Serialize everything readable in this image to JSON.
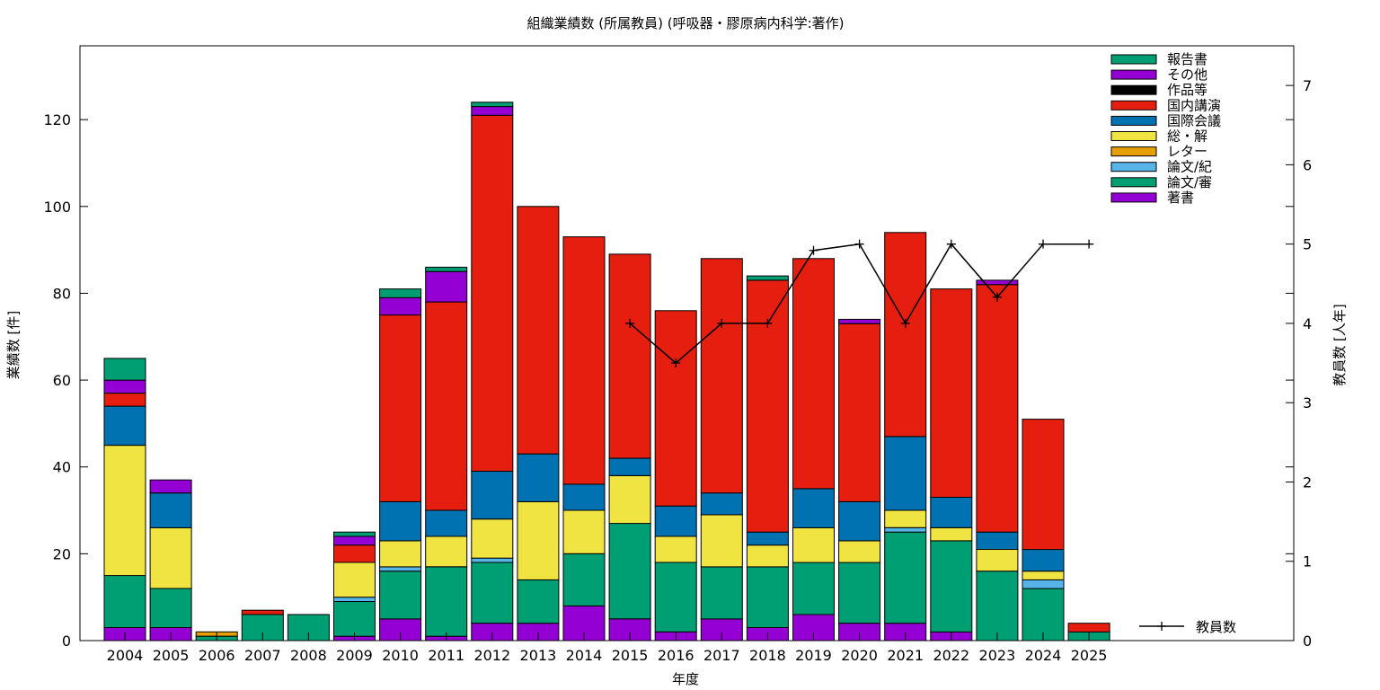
{
  "chart_data": {
    "type": "bar",
    "title": "組織業績数 (所属教員) (呼吸器・膠原病内科学:著作)",
    "xlabel": "年度",
    "ylabel": "業績数 [件]",
    "y2label": "教員数 [人年]",
    "ylim": [
      0,
      137
    ],
    "y2lim": [
      0,
      7.5
    ],
    "yticks": [
      0,
      20,
      40,
      60,
      80,
      100,
      120
    ],
    "y2ticks": [
      0,
      1,
      2,
      3,
      4,
      5,
      6,
      7
    ],
    "grid": false,
    "legend_position": "top-right",
    "categories": [
      "2004",
      "2005",
      "2006",
      "2007",
      "2008",
      "2009",
      "2010",
      "2011",
      "2012",
      "2013",
      "2014",
      "2015",
      "2016",
      "2017",
      "2018",
      "2019",
      "2020",
      "2021",
      "2022",
      "2023",
      "2024",
      "2025"
    ],
    "series": [
      {
        "name": "著書",
        "color": "#9400d3",
        "values": [
          3,
          3,
          0,
          0,
          0,
          1,
          5,
          1,
          4,
          4,
          8,
          5,
          2,
          5,
          3,
          6,
          4,
          4,
          2,
          0,
          0,
          0
        ]
      },
      {
        "name": "論文/審",
        "color": "#009e73",
        "values": [
          12,
          9,
          1,
          6,
          6,
          8,
          11,
          16,
          14,
          10,
          12,
          22,
          16,
          12,
          14,
          12,
          14,
          21,
          21,
          16,
          12,
          2
        ]
      },
      {
        "name": "論文/紀",
        "color": "#56b4e9",
        "values": [
          0,
          0,
          0,
          0,
          0,
          1,
          1,
          0,
          1,
          0,
          0,
          0,
          0,
          0,
          0,
          0,
          0,
          1,
          0,
          0,
          2,
          0
        ]
      },
      {
        "name": "レター",
        "color": "#e69f00",
        "values": [
          0,
          0,
          1,
          0,
          0,
          0,
          0,
          0,
          0,
          0,
          0,
          0,
          0,
          0,
          0,
          0,
          0,
          0,
          0,
          0,
          0,
          0
        ]
      },
      {
        "name": "総・解",
        "color": "#f0e442",
        "values": [
          30,
          14,
          0,
          0,
          0,
          8,
          6,
          7,
          9,
          18,
          10,
          11,
          6,
          12,
          5,
          8,
          5,
          4,
          3,
          5,
          2,
          0
        ]
      },
      {
        "name": "国際会議",
        "color": "#0072b2",
        "values": [
          9,
          8,
          0,
          0,
          0,
          0,
          9,
          6,
          11,
          11,
          6,
          4,
          7,
          5,
          3,
          9,
          9,
          17,
          7,
          4,
          5,
          0
        ]
      },
      {
        "name": "国内講演",
        "color": "#e51e10",
        "values": [
          3,
          0,
          0,
          1,
          0,
          4,
          43,
          48,
          82,
          57,
          57,
          47,
          45,
          54,
          58,
          53,
          41,
          47,
          48,
          57,
          30,
          2
        ]
      },
      {
        "name": "作品等",
        "color": "#000000",
        "values": [
          0,
          0,
          0,
          0,
          0,
          0,
          0,
          0,
          0,
          0,
          0,
          0,
          0,
          0,
          0,
          0,
          0,
          0,
          0,
          0,
          0,
          0
        ]
      },
      {
        "name": "その他",
        "color": "#9400d3",
        "values": [
          3,
          3,
          0,
          0,
          0,
          2,
          4,
          7,
          2,
          0,
          0,
          0,
          0,
          0,
          0,
          0,
          1,
          0,
          0,
          1,
          0,
          0
        ]
      },
      {
        "name": "報告書",
        "color": "#009e73",
        "values": [
          5,
          0,
          0,
          0,
          0,
          1,
          2,
          1,
          1,
          0,
          0,
          0,
          0,
          0,
          1,
          0,
          0,
          0,
          0,
          0,
          0,
          0
        ]
      }
    ],
    "line": {
      "name": "教員数",
      "axis": "y2",
      "color": "#000000",
      "x": [
        "2015",
        "2016",
        "2017",
        "2018",
        "2019",
        "2020",
        "2021",
        "2022",
        "2023",
        "2024",
        "2025"
      ],
      "values": [
        4,
        3.5,
        4,
        4,
        4.92,
        5,
        4,
        5,
        4.33,
        5,
        5
      ]
    }
  }
}
